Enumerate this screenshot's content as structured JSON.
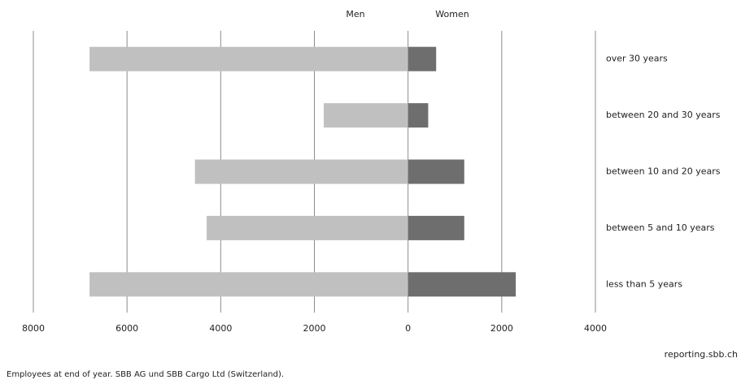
{
  "chart_data": {
    "type": "bar",
    "orientation": "horizontal",
    "categories": [
      "over 30 years",
      "between 20 and 30 years",
      "between 10 and 20 years",
      "between 5 and 10 years",
      "less than 5 years"
    ],
    "series": [
      {
        "name": "Men",
        "color": "#c0c0c0",
        "values": [
          -6800,
          -1800,
          -4550,
          -4300,
          -6800
        ]
      },
      {
        "name": "Women",
        "color": "#6e6e6e",
        "values": [
          600,
          430,
          1200,
          1200,
          2300
        ]
      }
    ],
    "xlim": [
      -8000,
      4000
    ],
    "xticks": [
      {
        "value": -8000,
        "label": "8000"
      },
      {
        "value": -6000,
        "label": "6000"
      },
      {
        "value": -4000,
        "label": "4000"
      },
      {
        "value": -2000,
        "label": "2000"
      },
      0,
      2000,
      4000
    ],
    "grid": true,
    "source": "reporting.sbb.ch",
    "footnote": "Employees at end of year. SBB AG und SBB Cargo Ltd (Switzerland)."
  }
}
